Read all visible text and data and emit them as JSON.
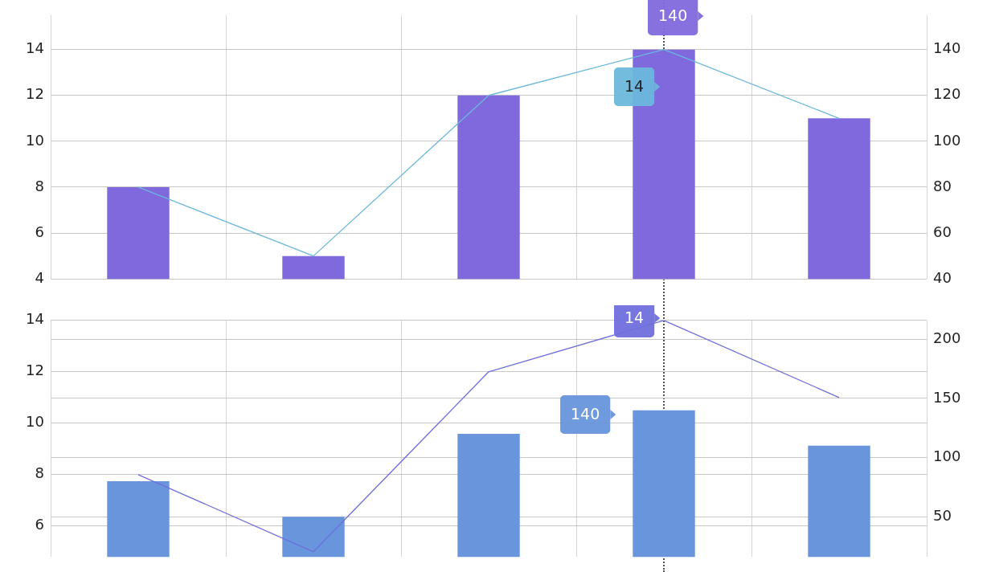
{
  "chart_data": [
    {
      "type": "bar",
      "categories": [
        null,
        null,
        null,
        null,
        null
      ],
      "ylim": [
        4,
        15.5
      ],
      "yticks": [
        4,
        6,
        8,
        10,
        12,
        14
      ],
      "y2lim": [
        40,
        155
      ],
      "y2ticks": [
        40,
        60,
        80,
        100,
        120,
        140
      ],
      "grid": true,
      "legend": false,
      "marker": "none",
      "line_style": "solid",
      "series": [
        {
          "type": "line",
          "color": "#6cb8dc",
          "values": [
            8,
            5,
            12,
            14,
            11
          ]
        },
        {
          "axis": "y2",
          "color": "#7f69dc",
          "values": [
            80,
            50,
            120,
            140,
            110
          ]
        }
      ],
      "annotations": [
        "140",
        "14"
      ]
    },
    {
      "type": "bar",
      "categories": [
        null,
        null,
        null,
        null,
        null
      ],
      "ylim": [
        4.8,
        14
      ],
      "yticks": [
        6,
        8,
        10,
        12,
        14
      ],
      "y2lim": [
        16,
        216
      ],
      "y2ticks": [
        50,
        100,
        150,
        200
      ],
      "grid": true,
      "legend": false,
      "marker": "none",
      "line_style": "solid",
      "series": [
        {
          "type": "line",
          "color": "#6f6fdc",
          "values": [
            8,
            5,
            12,
            14,
            11
          ]
        },
        {
          "axis": "y2",
          "color": "#6895dc",
          "values": [
            80,
            50,
            120,
            140,
            110
          ]
        }
      ],
      "annotations": [
        "14",
        "140"
      ]
    }
  ]
}
